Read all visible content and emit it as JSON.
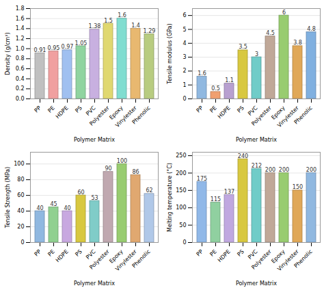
{
  "chart_data": [
    {
      "type": "bar",
      "categories": [
        "PP",
        "PE",
        "HDPE",
        "PS",
        "PVC",
        "Polyester",
        "Epoxy",
        "Vinylester",
        "Phenolic"
      ],
      "values": [
        0.91,
        0.95,
        0.97,
        1.05,
        1.38,
        1.5,
        1.6,
        1.4,
        1.29
      ],
      "colors": [
        "#c0c0c0",
        "#f0a0a0",
        "#a0c0f0",
        "#90d4a0",
        "#c8b0e0",
        "#e0d870",
        "#80ddd0",
        "#e8b870",
        "#b8cc80"
      ],
      "xlabel": "Polymer Matrix",
      "ylabel": "Density (g/cm³)",
      "ylim": [
        0.0,
        1.8
      ],
      "yticks": [
        {
          "value": 0.0,
          "label": "0.0"
        },
        0.2,
        0.4,
        0.6,
        0.8,
        {
          "value": 1.0,
          "label": "1.0"
        },
        1.2,
        1.4,
        1.6,
        1.8
      ],
      "grid": true,
      "data_labels": true
    },
    {
      "type": "bar",
      "categories": [
        "PP",
        "PE",
        "HDPE",
        "PS",
        "PVC",
        "Polyester",
        "Epoxy",
        "Vinylester",
        "Phenolic"
      ],
      "values": [
        1.6,
        0.5,
        1.1,
        3.5,
        3,
        4.5,
        6,
        3.8,
        4.8
      ],
      "colors": [
        "#90b8e0",
        "#f0a070",
        "#b8a0d0",
        "#d8c840",
        "#70ccc8",
        "#c0a898",
        "#98cc70",
        "#e0a858",
        "#80b0e0"
      ],
      "xlabel": "Polymer Matrix",
      "ylabel": "Tensile modulus (GPa)",
      "ylim": [
        0.0,
        6.5
      ],
      "yticks": [
        0,
        1,
        2,
        3,
        4,
        5,
        6
      ],
      "grid": true,
      "data_labels": true
    },
    {
      "type": "bar",
      "categories": [
        "PP",
        "PE",
        "HDPE",
        "PS",
        "PVC",
        "Polyester",
        "Epoxy",
        "Vinylester",
        "Phenolic"
      ],
      "values": [
        40,
        45,
        40,
        60,
        53,
        90,
        100,
        86,
        62
      ],
      "colors": [
        "#90b8e0",
        "#90d090",
        "#c8a8e0",
        "#d8c840",
        "#80ccc8",
        "#c0a8b0",
        "#98cc70",
        "#e0a870",
        "#b0c8e8"
      ],
      "xlabel": "Polymer Matrix",
      "ylabel": "Tensile Strength (MPa)",
      "ylim": [
        0,
        115
      ],
      "yticks": [
        0,
        20,
        40,
        60,
        80,
        100
      ],
      "grid": true,
      "data_labels": true
    },
    {
      "type": "bar",
      "categories": [
        "PP",
        "PE",
        "HDPE",
        "PS",
        "PVC",
        "Polyester",
        "Epoxy",
        "Vinylester",
        "Phenolic"
      ],
      "values": [
        175,
        115,
        137,
        240,
        212,
        200,
        200,
        150,
        200
      ],
      "colors": [
        "#90b8e8",
        "#90d0a0",
        "#c0a8e0",
        "#d8c840",
        "#70ccc8",
        "#c0a898",
        "#98cc70",
        "#e0a858",
        "#90b8e0"
      ],
      "xlabel": "Polymer Matrix",
      "ylabel": "Melting temperature (°C)",
      "ylim": [
        0,
        260
      ],
      "yticks": [
        0,
        50,
        100,
        150,
        200,
        250
      ],
      "grid": true,
      "data_labels": true
    }
  ]
}
